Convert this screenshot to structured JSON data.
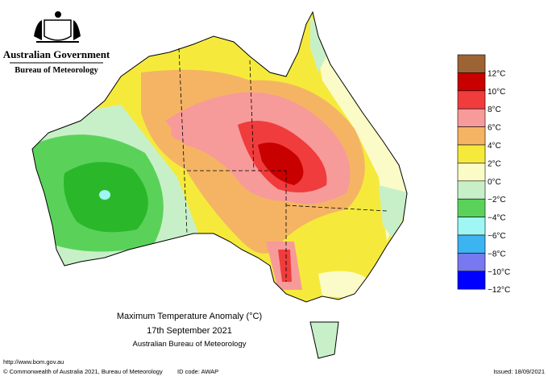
{
  "header": {
    "government": "Australian Government",
    "bureau": "Bureau of Meteorology"
  },
  "map": {
    "title": "Maximum Temperature Anomaly (°C)",
    "date": "17th September 2021",
    "source": "Australian Bureau of Meteorology"
  },
  "legend": {
    "colors": [
      "#9c6434",
      "#c80000",
      "#f03c3c",
      "#f79a9a",
      "#f5b464",
      "#f5ea3c",
      "#fbfbc8",
      "#c8f0c8",
      "#5ad25a",
      "#a0f5f5",
      "#3cb4f0",
      "#7878f0",
      "#0000ff"
    ],
    "top_color": "#9c6434",
    "labels": [
      "12°C",
      "10°C",
      "8°C",
      "6°C",
      "4°C",
      "2°C",
      "0°C",
      "−2°C",
      "−4°C",
      "−6°C",
      "−8°C",
      "−10°C",
      "−12°C"
    ]
  },
  "footer": {
    "url": "http://www.bom.gov.au",
    "copyright": "© Commonwealth of Australia 2021, Bureau of Meteorology",
    "id_code": "ID code: AWAP",
    "issued": "Issued: 18/09/2021"
  }
}
